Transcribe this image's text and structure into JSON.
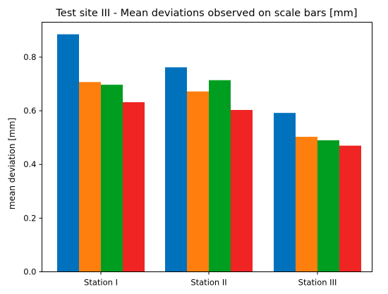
{
  "chart_data": {
    "type": "bar",
    "title": "Test site III - Mean deviations observed on scale bars [mm]",
    "xlabel": "",
    "ylabel": "mean deviation [mm]",
    "categories": [
      "Station I",
      "Station II",
      "Station III"
    ],
    "ylim": [
      0,
      0.93
    ],
    "yticks": [
      "0.0",
      "0.2",
      "0.4",
      "0.6",
      "0.8"
    ],
    "yticks_values": [
      0,
      0.2,
      0.4,
      0.6,
      0.8
    ],
    "grid": false,
    "legend": "none",
    "series": [
      {
        "color": "#0072bd",
        "values": [
          0.885,
          0.762,
          0.592
        ]
      },
      {
        "color": "#ff7f0e",
        "values": [
          0.707,
          0.672,
          0.503
        ]
      },
      {
        "color": "#009e20",
        "values": [
          0.697,
          0.714,
          0.49
        ]
      },
      {
        "color": "#ef2423",
        "values": [
          0.632,
          0.603,
          0.47
        ]
      }
    ]
  }
}
